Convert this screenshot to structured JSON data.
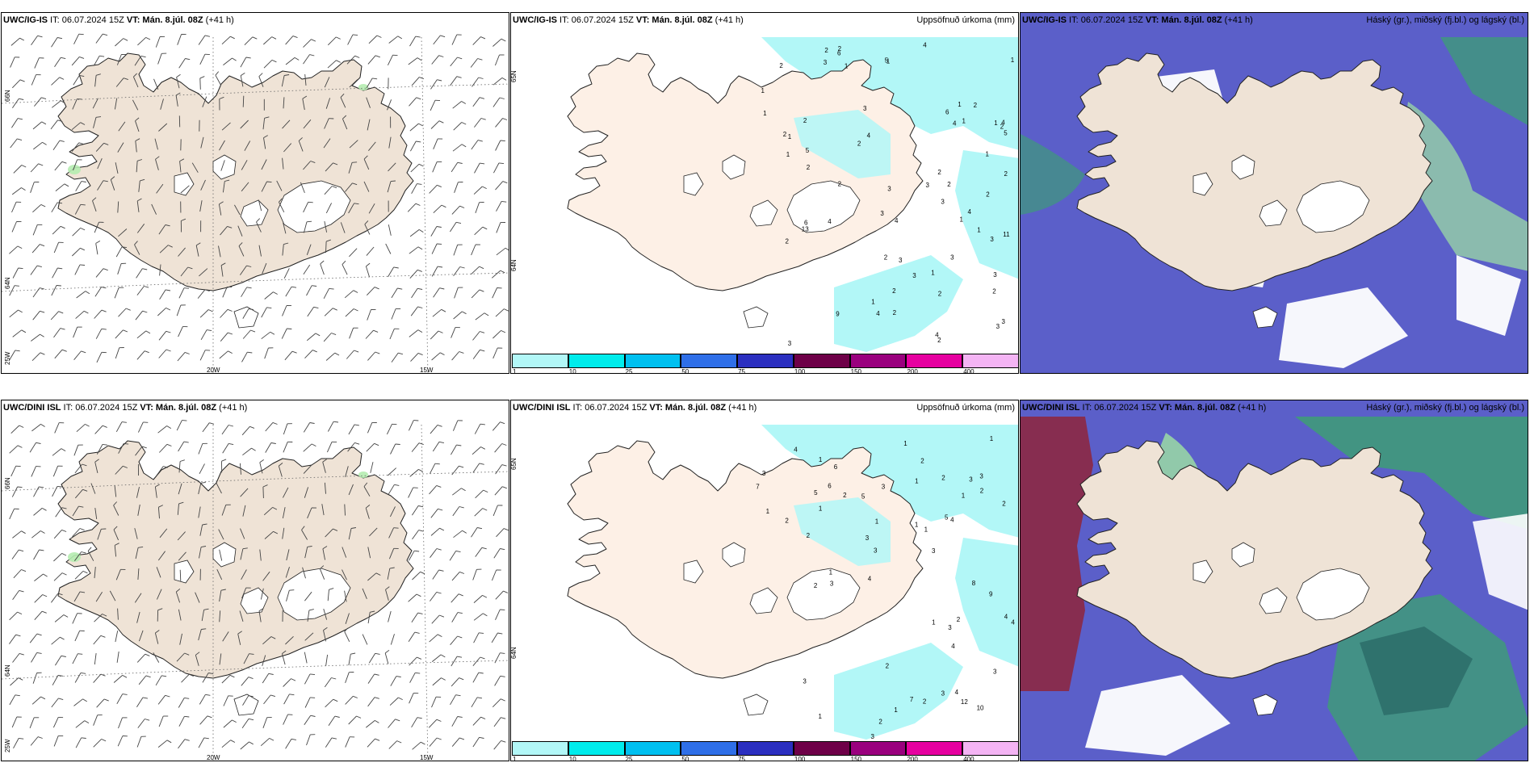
{
  "panels": [
    {
      "id": "p1",
      "kind": "wind",
      "model": "UWC/IG-IS",
      "it_text": " IT: 06.07.2024 15Z ",
      "vt_text": "VT: Mán. 8.júl. 08Z",
      "lead_text": " (+41 h)",
      "field_title": "",
      "lat_labels": [
        "66N",
        "64N"
      ],
      "lon_labels": [
        "25W",
        "20W",
        "15W"
      ]
    },
    {
      "id": "p2",
      "kind": "precip",
      "model": "UWC/IG-IS",
      "it_text": " IT: 06.07.2024 15Z ",
      "vt_text": "VT: Mán. 8.júl. 08Z",
      "lead_text": " (+41 h)",
      "field_title": "Uppsöfnuð úrkoma (mm)",
      "lat_labels": [
        "65N",
        "64N"
      ],
      "values": [
        "3",
        "1",
        "2",
        "1",
        "3",
        "4",
        "5",
        "6",
        "4",
        "4",
        "1",
        "2",
        "2",
        "2",
        "2",
        "1",
        "2",
        "1",
        "3",
        "3",
        "3",
        "3",
        "4",
        "5",
        "11",
        "9",
        "3",
        "13",
        "2",
        "1",
        "2",
        "2",
        "3",
        "2",
        "3",
        "3",
        "1",
        "1",
        "2",
        "2",
        "2",
        "3",
        "4",
        "2",
        "2",
        "2",
        "1",
        "2",
        "1",
        "6",
        "4",
        "5",
        "4",
        "3",
        "2",
        "1",
        "3",
        "2",
        "1",
        "4",
        "3",
        "2",
        "1",
        "1",
        "6",
        "1",
        "4",
        "2"
      ]
    },
    {
      "id": "p3",
      "kind": "cloud",
      "model": "UWC/IG-IS",
      "it_text": " IT: 06.07.2024 15Z ",
      "vt_text": "VT: Mán. 8.júl. 08Z",
      "lead_text": " (+41 h)",
      "field_title": "Háský (gr.), miðský (fj.bl.) og lágský (bl.)"
    },
    {
      "id": "p4",
      "kind": "wind",
      "model": "UWC/DINI ISL",
      "it_text": " IT: 06.07.2024 15Z ",
      "vt_text": "VT: Mán. 8.júl. 08Z",
      "lead_text": " (+41 h)",
      "field_title": "",
      "lat_labels": [
        "66N",
        "64N"
      ],
      "lon_labels": [
        "25W",
        "20W",
        "15W"
      ]
    },
    {
      "id": "p5",
      "kind": "precip",
      "model": "UWC/DINI ISL",
      "it_text": " IT: 06.07.2024 15Z ",
      "vt_text": "VT: Mán. 8.júl. 08Z",
      "lead_text": " (+41 h)",
      "field_title": "Uppsöfnuð úrkoma (mm)",
      "lat_labels": [
        "65N",
        "64N"
      ],
      "values": [
        "1",
        "1",
        "3",
        "2",
        "3",
        "3",
        "1",
        "3",
        "3",
        "4",
        "4",
        "6",
        "5",
        "3",
        "1",
        "1",
        "5",
        "10",
        "7",
        "12",
        "9",
        "3",
        "2",
        "2",
        "2",
        "2",
        "2",
        "4",
        "2",
        "2",
        "1",
        "2",
        "3",
        "1",
        "2",
        "1",
        "1",
        "4",
        "5",
        "3",
        "4",
        "1",
        "2",
        "7",
        "8",
        "3",
        "2",
        "1",
        "1",
        "4",
        "3",
        "3",
        "6",
        "4",
        "3",
        "1",
        "1"
      ]
    },
    {
      "id": "p6",
      "kind": "cloud",
      "model": "UWC/DINI ISL",
      "it_text": " IT: 06.07.2024 15Z ",
      "vt_text": "VT: Mán. 8.júl. 08Z",
      "lead_text": " (+41 h)",
      "field_title": "Háský (gr.), miðský (fj.bl.) og lágský (bl.)"
    }
  ],
  "colorbar": {
    "colors": [
      "#b2f7f7",
      "#00ecec",
      "#00c0f0",
      "#2f6fe8",
      "#2b2fc0",
      "#6e0048",
      "#9a007e",
      "#e600a0",
      "#f4b4f4"
    ],
    "ticks": [
      "1",
      "10",
      "25",
      "50",
      "75",
      "100",
      "150",
      "200",
      "400"
    ]
  },
  "colors": {
    "land_wind": "#efe3d6",
    "land_precip": "#fdf0e6",
    "land_cloud": "#efe3d6",
    "precip_light": "#b2f7f7",
    "low_cloud": "#5b5fc9",
    "mid_cloud": "#3f9a7a",
    "high_cloud": "#9fe3a3",
    "highlight_green": "#b5ecb0",
    "dark_red": "#8a2a4a"
  }
}
